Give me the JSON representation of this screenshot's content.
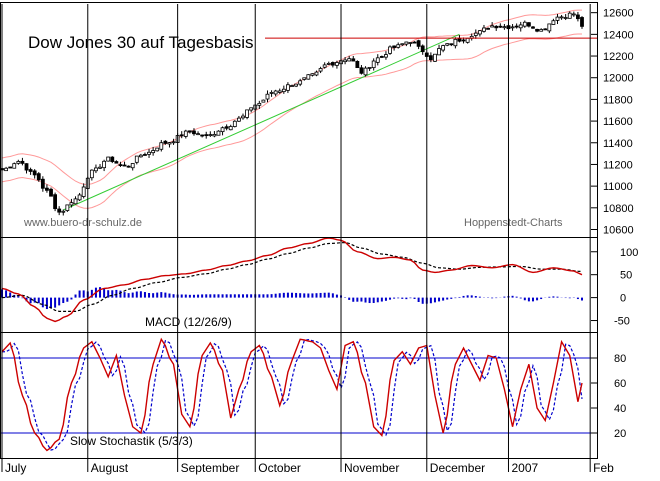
{
  "chart_data": [
    {
      "type": "candlestick",
      "title": "Dow Jones 30 auf Tagesbasis",
      "watermark_left": "www.buero-dr-schulz.de",
      "watermark_right": "Hoppenstedt-Charts",
      "y_ticks": [
        10600,
        10800,
        11000,
        11200,
        11400,
        11600,
        11800,
        12000,
        12200,
        12400,
        12600
      ],
      "ylim": [
        10540,
        12680
      ],
      "horizontal_line": 12365,
      "colors": {
        "price": "#000000",
        "horizontal_line": "#cc0000",
        "trend_line": "#33cc33",
        "envelope": "#ff9999",
        "frame": "#000000"
      },
      "close_anchors": [
        {
          "day": 0,
          "close": 11150
        },
        {
          "day": 4,
          "close": 11230
        },
        {
          "day": 8,
          "close": 11100
        },
        {
          "day": 11,
          "close": 10950
        },
        {
          "day": 14,
          "close": 10760
        },
        {
          "day": 18,
          "close": 10880
        },
        {
          "day": 22,
          "close": 11130
        },
        {
          "day": 26,
          "close": 11250
        },
        {
          "day": 30,
          "close": 11180
        },
        {
          "day": 35,
          "close": 11300
        },
        {
          "day": 40,
          "close": 11400
        },
        {
          "day": 46,
          "close": 11500
        },
        {
          "day": 50,
          "close": 11460
        },
        {
          "day": 55,
          "close": 11550
        },
        {
          "day": 58,
          "close": 11620
        },
        {
          "day": 62,
          "close": 11750
        },
        {
          "day": 67,
          "close": 11880
        },
        {
          "day": 72,
          "close": 11950
        },
        {
          "day": 76,
          "close": 12020
        },
        {
          "day": 80,
          "close": 12130
        },
        {
          "day": 85,
          "close": 12180
        },
        {
          "day": 88,
          "close": 12050
        },
        {
          "day": 92,
          "close": 12180
        },
        {
          "day": 96,
          "close": 12280
        },
        {
          "day": 100,
          "close": 12340
        },
        {
          "day": 103,
          "close": 12250
        },
        {
          "day": 105,
          "close": 12180
        },
        {
          "day": 108,
          "close": 12290
        },
        {
          "day": 112,
          "close": 12350
        },
        {
          "day": 116,
          "close": 12410
        },
        {
          "day": 120,
          "close": 12480
        },
        {
          "day": 124,
          "close": 12470
        },
        {
          "day": 128,
          "close": 12500
        },
        {
          "day": 132,
          "close": 12440
        },
        {
          "day": 136,
          "close": 12560
        },
        {
          "day": 140,
          "close": 12590
        },
        {
          "day": 142,
          "close": 12480
        }
      ],
      "trend_line_anchor_closes": [
        10780,
        12400
      ]
    },
    {
      "type": "line",
      "title": "MACD (12/26/9)",
      "y_ticks": [
        -50,
        0,
        50,
        100
      ],
      "ylim": [
        -75,
        130
      ],
      "colors": {
        "macd": "#cc0000",
        "signal": "#000000",
        "histogram": "#0000cc"
      },
      "macd_anchors": [
        {
          "day": 0,
          "value": 20
        },
        {
          "day": 4,
          "value": 8
        },
        {
          "day": 8,
          "value": -20
        },
        {
          "day": 11,
          "value": -45
        },
        {
          "day": 13,
          "value": -52
        },
        {
          "day": 16,
          "value": -40
        },
        {
          "day": 20,
          "value": -5
        },
        {
          "day": 25,
          "value": 20
        },
        {
          "day": 30,
          "value": 28
        },
        {
          "day": 35,
          "value": 40
        },
        {
          "day": 40,
          "value": 48
        },
        {
          "day": 45,
          "value": 52
        },
        {
          "day": 50,
          "value": 60
        },
        {
          "day": 55,
          "value": 70
        },
        {
          "day": 60,
          "value": 80
        },
        {
          "day": 65,
          "value": 92
        },
        {
          "day": 70,
          "value": 108
        },
        {
          "day": 75,
          "value": 118
        },
        {
          "day": 80,
          "value": 130
        },
        {
          "day": 83,
          "value": 125
        },
        {
          "day": 87,
          "value": 100
        },
        {
          "day": 92,
          "value": 85
        },
        {
          "day": 96,
          "value": 88
        },
        {
          "day": 100,
          "value": 82
        },
        {
          "day": 103,
          "value": 60
        },
        {
          "day": 106,
          "value": 55
        },
        {
          "day": 110,
          "value": 60
        },
        {
          "day": 115,
          "value": 70
        },
        {
          "day": 120,
          "value": 65
        },
        {
          "day": 125,
          "value": 72
        },
        {
          "day": 130,
          "value": 55
        },
        {
          "day": 135,
          "value": 65
        },
        {
          "day": 140,
          "value": 58
        },
        {
          "day": 142,
          "value": 50
        }
      ],
      "signal_anchors": [
        {
          "day": 0,
          "value": 0
        },
        {
          "day": 5,
          "value": 5
        },
        {
          "day": 10,
          "value": -15
        },
        {
          "day": 14,
          "value": -30
        },
        {
          "day": 18,
          "value": -30
        },
        {
          "day": 22,
          "value": -15
        },
        {
          "day": 27,
          "value": 5
        },
        {
          "day": 32,
          "value": 20
        },
        {
          "day": 38,
          "value": 33
        },
        {
          "day": 44,
          "value": 44
        },
        {
          "day": 50,
          "value": 52
        },
        {
          "day": 55,
          "value": 62
        },
        {
          "day": 60,
          "value": 72
        },
        {
          "day": 65,
          "value": 84
        },
        {
          "day": 70,
          "value": 96
        },
        {
          "day": 75,
          "value": 108
        },
        {
          "day": 80,
          "value": 118
        },
        {
          "day": 84,
          "value": 120
        },
        {
          "day": 88,
          "value": 108
        },
        {
          "day": 93,
          "value": 95
        },
        {
          "day": 98,
          "value": 88
        },
        {
          "day": 103,
          "value": 75
        },
        {
          "day": 107,
          "value": 65
        },
        {
          "day": 112,
          "value": 62
        },
        {
          "day": 117,
          "value": 66
        },
        {
          "day": 122,
          "value": 67
        },
        {
          "day": 127,
          "value": 68
        },
        {
          "day": 132,
          "value": 62
        },
        {
          "day": 137,
          "value": 62
        },
        {
          "day": 142,
          "value": 57
        }
      ]
    },
    {
      "type": "line",
      "title": "Slow Stochastik (5/3/3)",
      "y_ticks": [
        20,
        40,
        60,
        80
      ],
      "ylim": [
        0,
        100
      ],
      "reference_lines": [
        80,
        20
      ],
      "colors": {
        "k": "#cc0000",
        "d": "#0000cc",
        "reference": "#0000cc"
      },
      "k_anchors": [
        {
          "day": 0,
          "value": 85
        },
        {
          "day": 2,
          "value": 92
        },
        {
          "day": 5,
          "value": 50
        },
        {
          "day": 8,
          "value": 20
        },
        {
          "day": 11,
          "value": 6
        },
        {
          "day": 14,
          "value": 15
        },
        {
          "day": 17,
          "value": 60
        },
        {
          "day": 20,
          "value": 88
        },
        {
          "day": 22,
          "value": 93
        },
        {
          "day": 24,
          "value": 80
        },
        {
          "day": 26,
          "value": 65
        },
        {
          "day": 28,
          "value": 82
        },
        {
          "day": 30,
          "value": 50
        },
        {
          "day": 32,
          "value": 25
        },
        {
          "day": 34,
          "value": 20
        },
        {
          "day": 37,
          "value": 75
        },
        {
          "day": 39,
          "value": 95
        },
        {
          "day": 42,
          "value": 75
        },
        {
          "day": 44,
          "value": 35
        },
        {
          "day": 46,
          "value": 25
        },
        {
          "day": 49,
          "value": 82
        },
        {
          "day": 51,
          "value": 92
        },
        {
          "day": 54,
          "value": 70
        },
        {
          "day": 56,
          "value": 32
        },
        {
          "day": 58,
          "value": 55
        },
        {
          "day": 61,
          "value": 85
        },
        {
          "day": 63,
          "value": 90
        },
        {
          "day": 66,
          "value": 65
        },
        {
          "day": 68,
          "value": 42
        },
        {
          "day": 71,
          "value": 78
        },
        {
          "day": 73,
          "value": 95
        },
        {
          "day": 76,
          "value": 93
        },
        {
          "day": 78,
          "value": 88
        },
        {
          "day": 80,
          "value": 70
        },
        {
          "day": 82,
          "value": 55
        },
        {
          "day": 84,
          "value": 90
        },
        {
          "day": 86,
          "value": 93
        },
        {
          "day": 89,
          "value": 60
        },
        {
          "day": 91,
          "value": 25
        },
        {
          "day": 93,
          "value": 18
        },
        {
          "day": 96,
          "value": 78
        },
        {
          "day": 98,
          "value": 85
        },
        {
          "day": 100,
          "value": 75
        },
        {
          "day": 102,
          "value": 88
        },
        {
          "day": 104,
          "value": 90
        },
        {
          "day": 106,
          "value": 50
        },
        {
          "day": 108,
          "value": 20
        },
        {
          "day": 111,
          "value": 75
        },
        {
          "day": 113,
          "value": 88
        },
        {
          "day": 115,
          "value": 75
        },
        {
          "day": 117,
          "value": 62
        },
        {
          "day": 119,
          "value": 82
        },
        {
          "day": 121,
          "value": 80
        },
        {
          "day": 123,
          "value": 55
        },
        {
          "day": 125,
          "value": 25
        },
        {
          "day": 127,
          "value": 55
        },
        {
          "day": 129,
          "value": 75
        },
        {
          "day": 131,
          "value": 40
        },
        {
          "day": 133,
          "value": 30
        },
        {
          "day": 135,
          "value": 60
        },
        {
          "day": 137,
          "value": 93
        },
        {
          "day": 139,
          "value": 82
        },
        {
          "day": 141,
          "value": 45
        },
        {
          "day": 142,
          "value": 60
        }
      ]
    }
  ],
  "x_axis": {
    "months": [
      {
        "label": "July",
        "day": 0
      },
      {
        "label": "August",
        "day": 21
      },
      {
        "label": "September",
        "day": 43
      },
      {
        "label": "October",
        "day": 62
      },
      {
        "label": "November",
        "day": 83
      },
      {
        "label": "December",
        "day": 104
      },
      {
        "label": "2007",
        "day": 124
      },
      {
        "label": "Feb",
        "day": 144
      }
    ],
    "last_day": 142
  }
}
